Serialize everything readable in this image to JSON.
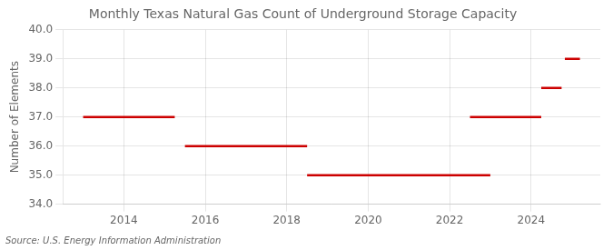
{
  "chart_data": {
    "type": "line",
    "title": "Monthly Texas Natural Gas Count of Underground Storage Capacity",
    "ylabel": "Number of Elements",
    "source": "Source: U.S. Energy Information Administration",
    "color": "#cc0000",
    "segments": [
      {
        "x_start": 2013.0,
        "x_end": 2015.25,
        "y": 37.0
      },
      {
        "x_start": 2015.5,
        "x_end": 2018.5,
        "y": 36.0
      },
      {
        "x_start": 2018.5,
        "x_end": 2023.0,
        "y": 35.0
      },
      {
        "x_start": 2022.5,
        "x_end": 2024.25,
        "y": 37.0
      },
      {
        "x_start": 2024.25,
        "x_end": 2024.75,
        "y": 38.0
      },
      {
        "x_start": 2024.83,
        "x_end": 2025.2,
        "y": 39.0
      }
    ],
    "xlim": [
      2012.5,
      2025.7
    ],
    "ylim": [
      34.0,
      40.0
    ],
    "xticks": [
      2014,
      2016,
      2018,
      2020,
      2022,
      2024
    ],
    "yticks": [
      {
        "value": 34.0,
        "label": "34.0"
      },
      {
        "value": 35.0,
        "label": "35.0"
      },
      {
        "value": 36.0,
        "label": "36.0"
      },
      {
        "value": 37.0,
        "label": "37.0"
      },
      {
        "value": 38.0,
        "label": "38.0"
      },
      {
        "value": 39.0,
        "label": "39.0"
      },
      {
        "value": 40.0,
        "label": "40.0"
      }
    ],
    "grid": true
  }
}
